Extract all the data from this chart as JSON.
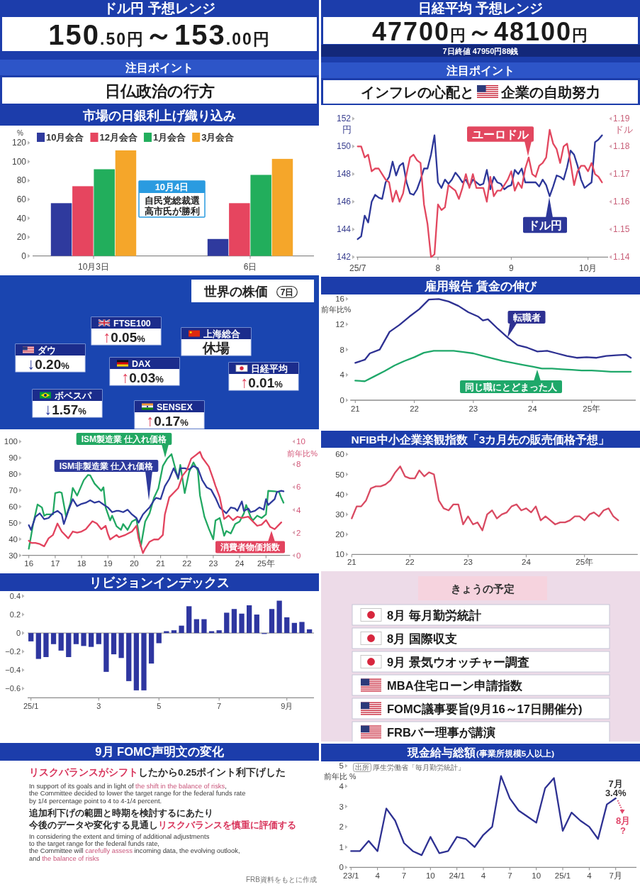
{
  "chart_data": [
    {
      "type": "other",
      "title": "ドル円 予想レンジ",
      "annotations": [
        "150.50円～153.00円",
        "注目ポイント",
        "日仏政治の行方"
      ]
    },
    {
      "type": "other",
      "title": "日経平均 予想レンジ",
      "annotations": [
        "47700円～48100円",
        "7日終値 47950円88銭",
        "注目ポイント",
        "インフレの心配と",
        "企業の自助努力"
      ]
    },
    {
      "type": "bar",
      "title": "市場の日銀利上げ織り込み",
      "ylabel": "%",
      "categories": [
        "10月3日",
        "6日"
      ],
      "series": [
        {
          "name": "10月会合",
          "color": "#2f3a9e",
          "values": [
            56,
            18
          ]
        },
        {
          "name": "12月会合",
          "color": "#e6455f",
          "values": [
            74,
            56
          ]
        },
        {
          "name": "1月会合",
          "color": "#22ae5c",
          "values": [
            92,
            86
          ]
        },
        {
          "name": "3月会合",
          "color": "#f5a62a",
          "values": [
            112,
            103
          ]
        }
      ],
      "ylim": [
        0,
        120
      ],
      "yticks": [
        0,
        20,
        40,
        60,
        80,
        100,
        120
      ],
      "legend": "top left",
      "annotations": [
        "10月4日",
        "自民党総裁選",
        "高市氏が勝利"
      ]
    },
    {
      "type": "line",
      "categories": [
        "25/7",
        null,
        null,
        null,
        null,
        null,
        null,
        null,
        null,
        null,
        null,
        null,
        null,
        null,
        null,
        null,
        null,
        null,
        null,
        null,
        null,
        null,
        null,
        "8",
        null,
        null,
        null,
        null,
        null,
        null,
        null,
        null,
        null,
        null,
        null,
        null,
        null,
        null,
        null,
        null,
        null,
        null,
        null,
        null,
        "9",
        null,
        null,
        null,
        null,
        null,
        null,
        null,
        null,
        null,
        null,
        null,
        null,
        null,
        null,
        null,
        null,
        null,
        null,
        null,
        null,
        null,
        "10月",
        null,
        null,
        null,
        null
      ],
      "series": [
        {
          "name": "ドル円",
          "color": "#2d3799",
          "values": [
            143.3,
            143.5,
            145.0,
            144.5,
            146.0,
            146.5,
            146.3,
            146.2,
            147.4,
            147.8,
            148.9,
            147.9,
            148.6,
            148.8,
            147.4,
            146.6,
            146.5,
            146.9,
            147.6,
            148.4,
            148.4,
            149.4,
            150.8,
            147.4,
            147.0,
            147.6,
            147.3,
            147.6,
            148.1,
            147.8,
            147.4,
            147.6,
            147.1,
            147.6,
            147.4,
            147.2,
            147.3,
            148.3,
            146.9,
            147.8,
            147.4,
            147.3,
            146.9,
            147.1,
            147.2,
            148.3,
            148.0,
            148.4,
            147.4,
            147.4,
            147.4,
            147.4,
            147.1,
            147.6,
            147.2,
            146.4,
            147.1,
            147.9,
            147.8,
            147.6,
            148.5,
            149.7,
            149.4,
            148.6,
            147.6,
            147.0,
            147.2,
            147.4,
            150.3,
            150.5,
            150.8
          ]
        },
        {
          "name": "ユーロドル",
          "color": "#e2475f",
          "axis": "y2",
          "values": [
            1.18,
            1.18,
            1.176,
            1.177,
            1.171,
            1.172,
            1.172,
            1.17,
            1.168,
            1.167,
            1.16,
            1.164,
            1.16,
            1.163,
            1.17,
            1.176,
            1.177,
            1.175,
            1.174,
            1.159,
            1.152,
            1.14,
            1.141,
            1.159,
            1.157,
            1.158,
            1.166,
            1.165,
            1.164,
            1.161,
            1.165,
            1.17,
            1.165,
            1.17,
            1.165,
            1.165,
            1.165,
            1.16,
            1.169,
            1.162,
            1.164,
            1.164,
            1.166,
            1.168,
            1.171,
            1.164,
            1.167,
            1.165,
            1.172,
            1.176,
            1.17,
            1.169,
            1.173,
            1.174,
            1.176,
            1.186,
            1.181,
            1.179,
            1.174,
            1.18,
            1.181,
            1.174,
            1.166,
            1.171,
            1.173,
            1.173,
            1.171,
            1.174,
            1.17,
            1.169,
            1.167
          ]
        }
      ],
      "ylim": [
        142,
        152
      ],
      "yticks": [
        142,
        144,
        146,
        148,
        150,
        152
      ],
      "ylabel": "円",
      "y2lim": [
        1.14,
        1.19
      ],
      "y2ticks": [
        1.14,
        1.15,
        1.16,
        1.17,
        1.18,
        1.19
      ],
      "y2label": "ドル"
    },
    {
      "type": "other",
      "title": "世界の株価",
      "subtitle": "7日",
      "categories": [
        "FTSE100",
        "上海総合",
        "ダウ",
        "DAX",
        "日経平均",
        "ボベスパ",
        "SENSEX"
      ],
      "value_labels": [
        "↑0.05%",
        "休場",
        "↓0.20%",
        "↑0.03%",
        "↑0.01%",
        "↓1.57%",
        "↑0.17%"
      ]
    },
    {
      "type": "line",
      "title": "雇用報告 賃金の伸び",
      "ylabel": "前年比%",
      "xlim": [
        "2020-12",
        "2025-10"
      ],
      "xticks": [
        {
          "value": "2021-01",
          "label": "21"
        },
        {
          "value": "2022-01",
          "label": "22"
        },
        {
          "value": "2023-01",
          "label": "23"
        },
        {
          "value": "2024-01",
          "label": "24"
        },
        {
          "value": "2025-01",
          "label": "25年"
        }
      ],
      "ylim": [
        0,
        16
      ],
      "yticks": [
        0,
        4,
        8,
        12,
        16
      ],
      "series": [
        {
          "name": "転職者",
          "color": "#2e3192",
          "x": [
            "2021-01",
            "2021-03",
            "2021-04",
            "2021-06",
            "2021-08",
            "2021-10",
            "2021-12",
            "2022-02",
            "2022-04",
            "2022-06",
            "2022-08",
            "2022-10",
            "2022-12",
            "2023-02",
            "2023-03",
            "2023-04",
            "2023-06",
            "2023-08",
            "2023-10",
            "2023-12",
            "2024-02",
            "2024-04",
            "2024-06",
            "2024-08",
            "2024-10",
            "2024-12",
            "2025-02",
            "2025-04",
            "2025-06",
            "2025-08",
            "2025-09"
          ],
          "values": [
            5.9,
            6.4,
            7.4,
            8.0,
            10.8,
            11.9,
            13.2,
            14.4,
            15.9,
            16.0,
            15.6,
            14.9,
            13.9,
            13.2,
            12.6,
            12.8,
            11.3,
            9.9,
            8.7,
            8.3,
            7.7,
            7.8,
            7.4,
            7.0,
            6.7,
            6.8,
            6.7,
            7.0,
            7.1,
            7.2,
            6.7
          ]
        },
        {
          "name": "同じ職にとどまった人",
          "color": "#1fa86a",
          "x": [
            "2021-01",
            "2021-03",
            "2021-05",
            "2021-07",
            "2021-09",
            "2021-11",
            "2022-01",
            "2022-03",
            "2022-05",
            "2022-07",
            "2022-09",
            "2022-11",
            "2023-01",
            "2023-03",
            "2023-05",
            "2023-07",
            "2023-09",
            "2023-11",
            "2024-01",
            "2024-03",
            "2024-05",
            "2024-07",
            "2024-09",
            "2024-11",
            "2025-01",
            "2025-03",
            "2025-05",
            "2025-07",
            "2025-09"
          ],
          "values": [
            3.1,
            3.0,
            3.8,
            4.6,
            5.5,
            6.2,
            6.8,
            7.5,
            7.8,
            7.8,
            7.8,
            7.6,
            7.4,
            7.0,
            6.6,
            6.2,
            5.9,
            5.6,
            5.3,
            5.0,
            5.0,
            4.9,
            4.8,
            4.7,
            4.7,
            4.6,
            4.5,
            4.5,
            4.5
          ]
        }
      ]
    },
    {
      "type": "line",
      "xlim": [
        "2015-10",
        "2025-12"
      ],
      "xticks": [
        {
          "value": "2016-01",
          "label": "16"
        },
        {
          "value": "2017-01",
          "label": "17"
        },
        {
          "value": "2018-01",
          "label": "18"
        },
        {
          "value": "2019-01",
          "label": "19"
        },
        {
          "value": "2020-01",
          "label": "20"
        },
        {
          "value": "2021-01",
          "label": "21"
        },
        {
          "value": "2022-01",
          "label": "22"
        },
        {
          "value": "2023-01",
          "label": "23"
        },
        {
          "value": "2024-01",
          "label": "24"
        },
        {
          "value": "2025-01",
          "label": "25年"
        }
      ],
      "ylim": [
        30,
        100
      ],
      "yticks": [
        30,
        40,
        50,
        60,
        70,
        80,
        90,
        100
      ],
      "y2lim": [
        0,
        10
      ],
      "y2ticks": [
        0,
        2,
        4,
        6,
        8,
        10
      ],
      "y2label": "前年比%",
      "series": [
        {
          "name": "ISM製造業 仕入れ価格",
          "color": "#22a862",
          "x": [
            "2016-01",
            "2016-03",
            "2016-05",
            "2016-07",
            "2016-08",
            "2016-09",
            "2016-12",
            "2017-01",
            "2017-03",
            "2017-04",
            "2017-06",
            "2017-08",
            "2017-09",
            "2017-11",
            "2018-02",
            "2018-04",
            "2018-05",
            "2018-07",
            "2018-10",
            "2018-11",
            "2018-12",
            "2019-02",
            "2019-03",
            "2019-05",
            "2019-07",
            "2019-08",
            "2019-10",
            "2019-12",
            "2020-02",
            "2020-04",
            "2020-06",
            "2020-08",
            "2020-10",
            "2020-12",
            "2021-02",
            "2021-04",
            "2021-06",
            "2021-09",
            "2021-10",
            "2021-12",
            "2022-02",
            "2022-04",
            "2022-06",
            "2022-07",
            "2022-09",
            "2022-11",
            "2023-01",
            "2023-02",
            "2023-04",
            "2023-06",
            "2023-07",
            "2023-09",
            "2023-11",
            "2024-01",
            "2024-03",
            "2024-04",
            "2024-06",
            "2024-07",
            "2024-09",
            "2024-11",
            "2025-01",
            "2025-02",
            "2025-05",
            "2025-07",
            "2025-08",
            "2025-09"
          ],
          "values": [
            34.1,
            49.3,
            61.3,
            59.5,
            54.4,
            55.2,
            55.2,
            68.3,
            69.0,
            68.5,
            53.7,
            62.4,
            71.5,
            66.8,
            76.3,
            79.5,
            79.2,
            74.1,
            69.7,
            71.9,
            59.5,
            51.5,
            54.4,
            47.9,
            45.7,
            49.3,
            45.7,
            50.8,
            52.3,
            35.5,
            50.8,
            55.9,
            65.4,
            71.2,
            85.0,
            89.4,
            92.3,
            77.0,
            85.7,
            68.3,
            81.4,
            87.2,
            82.1,
            66.8,
            53.7,
            46.4,
            39.9,
            51.5,
            53.0,
            42.1,
            45.0,
            43.5,
            49.3,
            50.8,
            55.9,
            61.0,
            53.7,
            51.5,
            54.4,
            53.0,
            55.2,
            69.7,
            69.4,
            69.0,
            65.4,
            62.4
          ]
        },
        {
          "name": "ISM非製造業 仕入れ価格",
          "color": "#2e3a9c",
          "x": [
            "2016-01",
            "2016-02",
            "2016-04",
            "2016-06",
            "2016-08",
            "2016-10",
            "2016-12",
            "2017-02",
            "2017-04",
            "2017-05",
            "2017-07",
            "2017-09",
            "2017-11",
            "2018-01",
            "2018-03",
            "2018-05",
            "2018-07",
            "2018-09",
            "2018-11",
            "2019-01",
            "2019-03",
            "2019-05",
            "2019-06",
            "2019-08",
            "2019-10",
            "2019-12",
            "2020-02",
            "2020-03",
            "2020-05",
            "2020-07",
            "2020-08",
            "2020-10",
            "2020-11",
            "2021-01",
            "2021-03",
            "2021-05",
            "2021-07",
            "2021-09",
            "2021-10",
            "2021-12",
            "2022-02",
            "2022-04",
            "2022-06",
            "2022-08",
            "2022-10",
            "2022-12",
            "2023-02",
            "2023-04",
            "2023-07",
            "2023-09",
            "2023-11",
            "2023-12",
            "2024-02",
            "2024-03",
            "2024-05",
            "2024-06",
            "2024-08",
            "2024-10",
            "2024-12",
            "2025-01",
            "2025-02",
            "2025-05",
            "2025-06",
            "2025-08",
            "2025-09"
          ],
          "values": [
            48.6,
            45.7,
            53.7,
            55.9,
            52.3,
            53.0,
            55.9,
            57.4,
            55.2,
            49.3,
            57.4,
            64.6,
            60.3,
            61.7,
            62.4,
            63.9,
            62.4,
            63.2,
            61.3,
            59.5,
            56.6,
            57.4,
            57.4,
            56.6,
            58.1,
            55.2,
            53.0,
            50.1,
            55.2,
            58.1,
            59.5,
            63.9,
            65.4,
            64.6,
            72.6,
            77.0,
            83.6,
            77.7,
            83.6,
            83.6,
            82.8,
            85.0,
            83.6,
            76.3,
            71.9,
            70.5,
            65.4,
            59.5,
            55.9,
            59.5,
            58.8,
            57.4,
            63.2,
            57.4,
            58.8,
            56.6,
            57.4,
            59.5,
            58.1,
            64.6,
            61.0,
            64.6,
            69.0,
            69.7,
            69.4
          ]
        },
        {
          "name": "消費者物価指数",
          "color": "#e2435e",
          "axis": "y2",
          "x": [
            "2016-01",
            "2016-02",
            "2016-04",
            "2016-06",
            "2016-08",
            "2016-10",
            "2016-12",
            "2017-02",
            "2017-04",
            "2017-07",
            "2017-09",
            "2017-11",
            "2018-01",
            "2018-03",
            "2018-06",
            "2018-08",
            "2018-10",
            "2018-12",
            "2019-01",
            "2019-02",
            "2019-05",
            "2019-06",
            "2019-09",
            "2019-12",
            "2020-02",
            "2020-03",
            "2020-05",
            "2020-06",
            "2020-08",
            "2020-10",
            "2020-12",
            "2021-02",
            "2021-03",
            "2021-05",
            "2021-07",
            "2021-09",
            "2021-11",
            "2022-01",
            "2022-03",
            "2022-05",
            "2022-07",
            "2022-08",
            "2022-11",
            "2023-01",
            "2023-02",
            "2023-04",
            "2023-06",
            "2023-08",
            "2023-10",
            "2023-12",
            "2024-02",
            "2024-05",
            "2024-07",
            "2024-09",
            "2024-11",
            "2025-01",
            "2025-03",
            "2025-05",
            "2025-07",
            "2025-08"
          ],
          "values": [
            1.3,
            1.1,
            1.1,
            1.0,
            0.8,
            1.5,
            1.8,
            2.8,
            2.1,
            1.5,
            2.1,
            2.0,
            2.1,
            2.3,
            3.0,
            2.8,
            2.3,
            2.6,
            1.9,
            1.4,
            1.8,
            1.6,
            1.8,
            2.1,
            2.6,
            1.5,
            0.2,
            0.6,
            1.2,
            1.4,
            1.4,
            1.8,
            3.6,
            5.1,
            5.5,
            5.9,
            7.0,
            7.5,
            8.5,
            8.8,
            9.1,
            8.6,
            7.8,
            6.7,
            6.1,
            5.1,
            3.2,
            3.5,
            3.1,
            3.4,
            3.3,
            3.4,
            3.0,
            2.6,
            2.7,
            3.1,
            2.5,
            2.3,
            2.7,
            2.9
          ]
        }
      ]
    },
    {
      "type": "line",
      "title": "NFIB中小企業楽観指数「3カ月先の販売価格予想」",
      "xlim": [
        "2021-01",
        "2025-12"
      ],
      "xticks": [
        {
          "value": "2021-01",
          "label": "21"
        },
        {
          "value": "2022-01",
          "label": "22"
        },
        {
          "value": "2023-01",
          "label": "23"
        },
        {
          "value": "2024-01",
          "label": "24"
        },
        {
          "value": "2025-01",
          "label": "25年"
        }
      ],
      "ylim": [
        10,
        60
      ],
      "yticks": [
        10,
        20,
        30,
        40,
        50,
        60
      ],
      "series": [
        {
          "color": "#d94a62",
          "x": [
            "2021-01",
            "2021-02",
            "2021-03",
            "2021-04",
            "2021-05",
            "2021-06",
            "2021-07",
            "2021-08",
            "2021-09",
            "2021-10",
            "2021-11",
            "2021-12",
            "2022-01",
            "2022-02",
            "2022-03",
            "2022-04",
            "2022-05",
            "2022-06",
            "2022-07",
            "2022-08",
            "2022-09",
            "2022-10",
            "2022-11",
            "2022-12",
            "2023-01",
            "2023-02",
            "2023-03",
            "2023-04",
            "2023-05",
            "2023-06",
            "2023-07",
            "2023-08",
            "2023-09",
            "2023-10",
            "2023-11",
            "2023-12",
            "2024-01",
            "2024-02",
            "2024-03",
            "2024-04",
            "2024-05",
            "2024-06",
            "2024-07",
            "2024-08",
            "2024-09",
            "2024-10",
            "2024-11",
            "2024-12",
            "2025-01",
            "2025-02",
            "2025-03",
            "2025-04",
            "2025-05",
            "2025-06",
            "2025-07",
            "2025-08"
          ],
          "values": [
            28,
            34,
            34,
            37,
            43,
            44,
            44,
            45,
            47,
            51,
            54,
            49,
            48,
            48,
            52,
            49,
            51,
            50,
            37,
            33,
            32,
            35,
            35,
            25,
            29,
            25,
            26,
            22,
            30,
            32,
            28,
            30,
            31,
            34,
            35,
            32,
            33,
            31,
            34,
            27,
            29,
            27,
            25,
            26,
            26,
            27,
            29,
            29,
            27,
            30,
            31,
            29,
            32,
            33,
            29,
            27
          ]
        }
      ]
    },
    {
      "type": "bar",
      "title": "リビジョンインデックス",
      "categories": [
        "25/1",
        null,
        null,
        null,
        null,
        null,
        null,
        null,
        null,
        "3",
        null,
        null,
        null,
        null,
        null,
        null,
        null,
        "5",
        null,
        null,
        null,
        null,
        null,
        null,
        null,
        "7",
        null,
        null,
        null,
        null,
        null,
        null,
        null,
        null,
        "9月",
        null,
        null,
        null
      ],
      "values": [
        -0.09,
        -0.28,
        -0.26,
        -0.12,
        -0.19,
        -0.26,
        -0.12,
        -0.14,
        -0.15,
        -0.12,
        -0.42,
        -0.23,
        -0.27,
        -0.52,
        -0.62,
        -0.62,
        -0.33,
        -0.11,
        0.02,
        0.03,
        0.08,
        0.29,
        0.15,
        0.15,
        0.02,
        0.03,
        0.22,
        0.26,
        0.21,
        0.3,
        0.2,
        -0.01,
        0.26,
        0.35,
        0.17,
        0.11,
        0.12,
        0.04
      ],
      "color": "#2e36a0",
      "ylim": [
        -0.7,
        0.4
      ],
      "yticks": [
        {
          "value": -0.6,
          "label": "−0.6"
        },
        {
          "value": -0.4,
          "label": "−0.4"
        },
        {
          "value": -0.2,
          "label": "−0.2"
        },
        0,
        0.2,
        0.4
      ],
      "ref_lines": [
        {
          "axis": "y",
          "value": 0
        }
      ]
    },
    {
      "type": "other",
      "title": "きょうの予定",
      "annotations": [
        "8月 毎月勤労統計",
        "8月 国際収支",
        "9月 景気ウオッチャー調査",
        "MBA住宅ローン申請指数",
        "FOMC議事要旨(9月16～17日開催分)",
        "FRBバー理事が講演"
      ]
    },
    {
      "type": "other",
      "title": "9月 FOMC声明文の変化",
      "annotations": [
        "リスクバランスがシフト",
        "したから0.25ポイント利下げした",
        "In support of its goals and in light of ",
        "the shift in the balance of risks",
        ",",
        "the Committee decided to lower the target range for the federal funds rate",
        "by 1/4 percentage point to 4 to 4-1/4 percent.",
        "追加利下げの範囲と時期を検討するにあたり",
        "今後のデータや変化する見通し",
        "リスクバランスを慎重に評価する",
        "In considering the extent and timing of additional adjustments",
        "to the target range for the federal funds rate,",
        "the Committee will ",
        "carefully assess",
        " incoming data, the evolving outlook,",
        "and ",
        "the balance of risks",
        "FRB資料をもとに作成"
      ]
    },
    {
      "type": "line",
      "title": "現金給与総額",
      "subtitle": "(事業所規模5人以上)",
      "ylabel": "前年比 %",
      "categories": [
        "23/1",
        null,
        null,
        "4",
        null,
        null,
        "7",
        null,
        null,
        "10",
        null,
        null,
        "24/1",
        null,
        null,
        "4",
        null,
        null,
        "7",
        null,
        null,
        "10",
        null,
        null,
        "25/1",
        null,
        null,
        "4",
        null,
        null,
        "7月"
      ],
      "ylim": [
        0,
        5
      ],
      "yticks": [
        0,
        1,
        2,
        3,
        4,
        5
      ],
      "series": [
        {
          "color": "#2e3192",
          "values": [
            0.8,
            0.8,
            1.3,
            0.8,
            2.9,
            2.3,
            1.2,
            0.8,
            0.6,
            1.5,
            0.7,
            0.8,
            1.5,
            1.4,
            1.0,
            1.6,
            2.0,
            4.5,
            3.4,
            2.8,
            2.5,
            2.2,
            3.9,
            4.4,
            1.8,
            2.7,
            2.3,
            2.0,
            1.4,
            3.1,
            3.4
          ]
        }
      ],
      "annotations": [
        {
          "text": "7月\n3.4%",
          "x": "7月",
          "y": 3.4
        },
        "8月\n?",
        "出所",
        "厚生労働省「毎月勤労統計」"
      ]
    }
  ]
}
